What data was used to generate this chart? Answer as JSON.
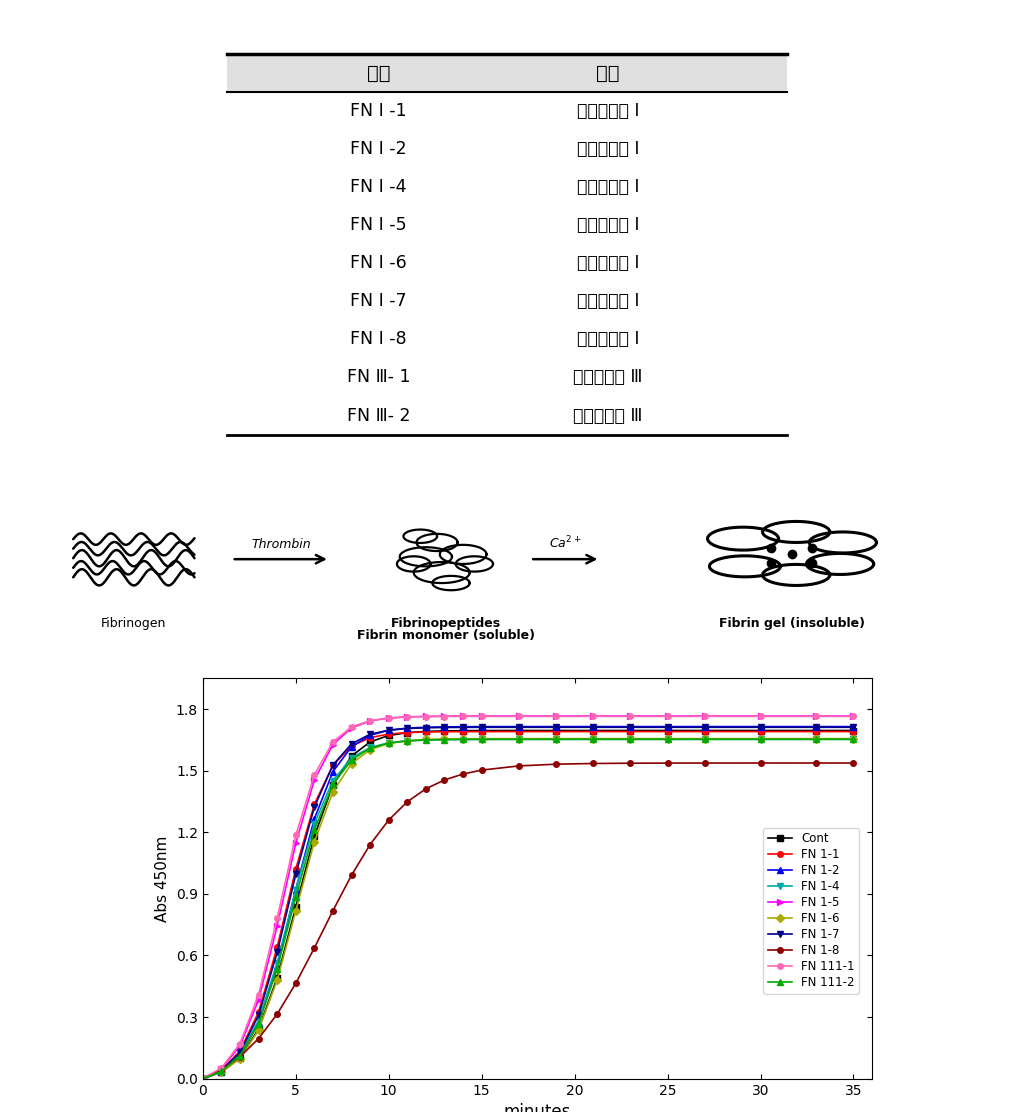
{
  "table_headers": [
    "이름",
    "유래"
  ],
  "table_rows": [
    [
      "FN Ⅰ -1",
      "피브로낙팀 Ⅰ"
    ],
    [
      "FN Ⅰ -2",
      "피브로낙팀 Ⅰ"
    ],
    [
      "FN Ⅰ -4",
      "피브로낙팀 Ⅰ"
    ],
    [
      "FN Ⅰ -5",
      "피브로낙팀 Ⅰ"
    ],
    [
      "FN Ⅰ -6",
      "피브로낙팀 Ⅰ"
    ],
    [
      "FN Ⅰ -7",
      "피브로낙팀 Ⅰ"
    ],
    [
      "FN Ⅰ -8",
      "피브로낙팀 Ⅰ"
    ],
    [
      "FN Ⅲ- 1",
      "피브로낙팀 Ⅲ"
    ],
    [
      "FN Ⅲ- 2",
      "피브로낙팀 Ⅲ"
    ]
  ],
  "diagram_labels": {
    "fibrinogen": "Fibrinogen",
    "thrombin": "Thrombin",
    "fibrinopeptides": "Fibrinopeptides",
    "fibrin_monomer": "Fibrin monomer (soluble)",
    "fibrin_gel": "Fibrin gel (insoluble)"
  },
  "graph": {
    "xlabel": "minutes",
    "ylabel": "Abs 450nm",
    "xlim": [
      0,
      36
    ],
    "ylim": [
      0.0,
      1.95
    ],
    "xticks": [
      0,
      5,
      10,
      15,
      20,
      25,
      30,
      35
    ],
    "yticks": [
      0.0,
      0.3,
      0.6,
      0.9,
      1.2,
      1.5,
      1.8
    ]
  },
  "series_params": {
    "Cont": {
      "color": "#000000",
      "marker": "s",
      "final": 1.72,
      "lag": 5.0,
      "rate": 0.85,
      "slow": false
    },
    "FN 1-1": {
      "color": "#ff0000",
      "marker": "o",
      "final": 1.72,
      "lag": 4.5,
      "rate": 0.9,
      "slow": false
    },
    "FN 1-2": {
      "color": "#0000ff",
      "marker": "^",
      "final": 1.74,
      "lag": 4.8,
      "rate": 0.88,
      "slow": false
    },
    "FN 1-4": {
      "color": "#00aaaa",
      "marker": "v",
      "final": 1.68,
      "lag": 4.7,
      "rate": 0.87,
      "slow": false
    },
    "FN 1-5": {
      "color": "#ff00ff",
      "marker": ">",
      "final": 1.8,
      "lag": 4.3,
      "rate": 0.92,
      "slow": false
    },
    "FN 1-6": {
      "color": "#aaaa00",
      "marker": "D",
      "final": 1.68,
      "lag": 5.0,
      "rate": 0.85,
      "slow": false
    },
    "FN 1-7": {
      "color": "#000088",
      "marker": "v",
      "final": 1.74,
      "lag": 4.6,
      "rate": 0.89,
      "slow": false
    },
    "FN 1-8": {
      "color": "#8b0000",
      "marker": "o",
      "final": 1.62,
      "lag": 6.5,
      "rate": 0.45,
      "slow": true
    },
    "FN 111-1": {
      "color": "#ff69b4",
      "marker": "o",
      "final": 1.8,
      "lag": 4.2,
      "rate": 0.93,
      "slow": false
    },
    "FN 111-2": {
      "color": "#00aa00",
      "marker": "^",
      "final": 1.68,
      "lag": 4.8,
      "rate": 0.86,
      "slow": false
    }
  },
  "bg_color": "#ffffff",
  "table_header_bg": "#e0e0e0"
}
